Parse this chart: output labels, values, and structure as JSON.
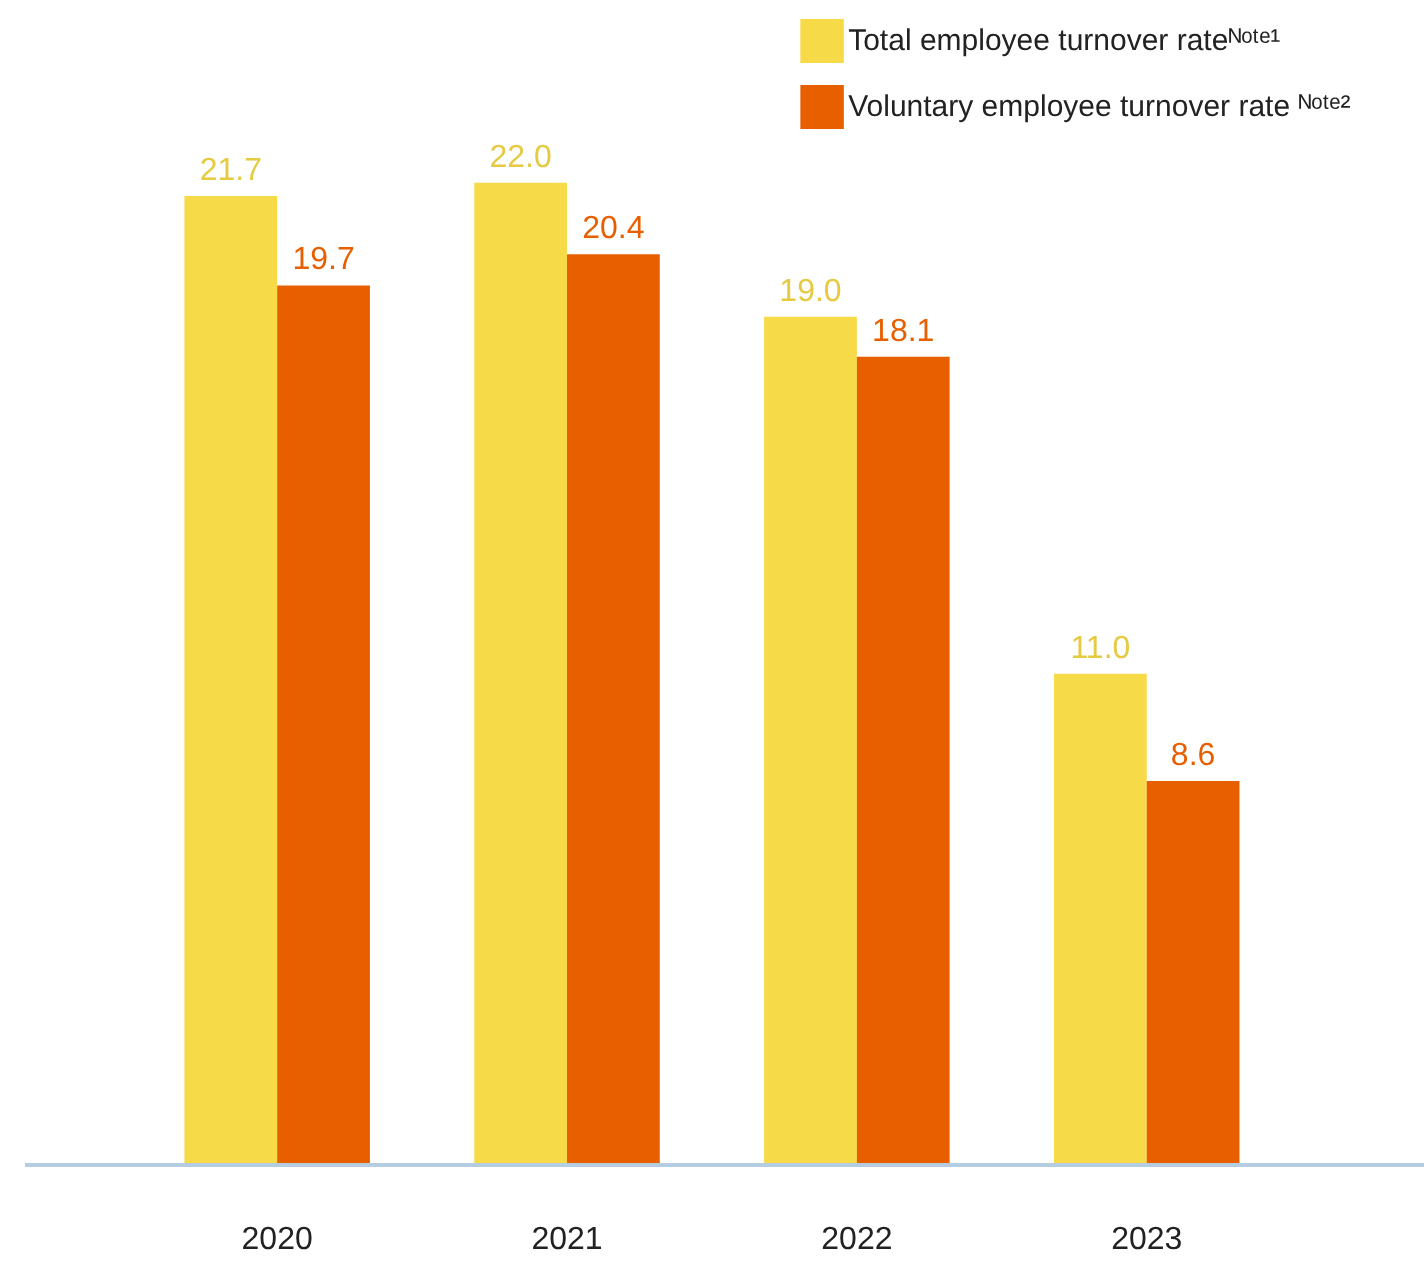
{
  "chart_data": {
    "type": "bar",
    "categories": [
      "2020",
      "2021",
      "2022",
      "2023"
    ],
    "series": [
      {
        "name": "Total employee turnover rateᴺᵒᵗᵉ¹",
        "color": "#f7da48",
        "values": [
          21.7,
          22.0,
          19.0,
          11.0
        ],
        "value_labels": [
          "21.7",
          "22.0",
          "19.0",
          "11.0"
        ]
      },
      {
        "name": "Voluntary employee turnover rate ᴺᵒᵗᵉ²",
        "color": "#e85f00",
        "values": [
          19.7,
          20.4,
          18.1,
          8.6
        ],
        "value_labels": [
          "19.7",
          "20.4",
          "18.1",
          "8.6"
        ]
      }
    ],
    "legend": "top right",
    "grid": false
  }
}
